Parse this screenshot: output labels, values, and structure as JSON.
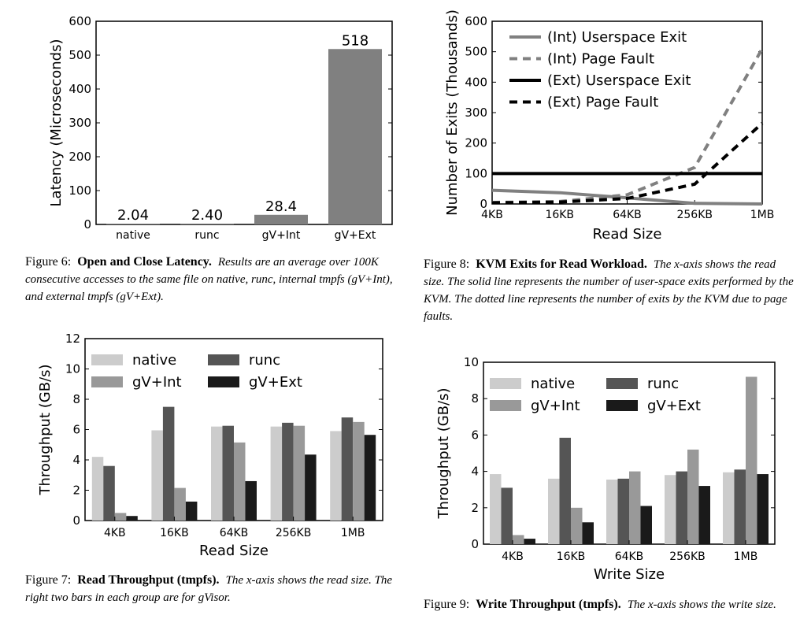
{
  "figures": {
    "fig6": {
      "caption": {
        "label": "Figure 6:",
        "title": "Open and Close Latency.",
        "body": "Results are an average over 100K consecutive accesses to the same file on native, runc, internal tmpfs (gV+Int), and external tmpfs (gV+Ext)."
      }
    },
    "fig7": {
      "caption": {
        "label": "Figure 7:",
        "title": "Read Throughput (tmpfs).",
        "body": "The x-axis shows the read size. The right two bars in each group are for gVisor."
      }
    },
    "fig8": {
      "caption": {
        "label": "Figure 8:",
        "title": "KVM Exits for Read Workload.",
        "body": "The x-axis shows the read size. The solid line represents the number of user-space exits performed by the KVM. The dotted line represents the number of exits by the KVM due to page faults."
      }
    },
    "fig9": {
      "caption": {
        "label": "Figure 9:",
        "title": "Write Throughput (tmpfs).",
        "body": "The x-axis shows the write size."
      }
    }
  },
  "chart_data": [
    {
      "id": "fig6",
      "type": "bar",
      "categories": [
        "native",
        "runc",
        "gV+Int",
        "gV+Ext"
      ],
      "values": [
        2.04,
        2.4,
        28.4,
        518
      ],
      "data_labels": [
        "2.04",
        "2.40",
        "28.4",
        "518"
      ],
      "ylabel": "Latency (Microseconds)",
      "xlabel": "",
      "ylim": [
        0,
        600
      ],
      "yticks": [
        0,
        100,
        200,
        300,
        400,
        500,
        600
      ],
      "bar_color": "#808080",
      "grid": false
    },
    {
      "id": "fig7",
      "type": "bar",
      "categories": [
        "4KB",
        "16KB",
        "64KB",
        "256KB",
        "1MB"
      ],
      "series": [
        {
          "name": "native",
          "color": "#cccccc",
          "values": [
            4.2,
            5.95,
            6.2,
            6.2,
            5.9
          ]
        },
        {
          "name": "runc",
          "color": "#555555",
          "values": [
            3.6,
            7.5,
            6.25,
            6.45,
            6.8
          ]
        },
        {
          "name": "gV+Int",
          "color": "#999999",
          "values": [
            0.5,
            2.15,
            5.15,
            6.25,
            6.5
          ]
        },
        {
          "name": "gV+Ext",
          "color": "#1a1a1a",
          "values": [
            0.3,
            1.25,
            2.6,
            4.35,
            5.65
          ]
        }
      ],
      "xlabel": "Read Size",
      "ylabel": "Throughput (GB/s)",
      "ylim": [
        0,
        12
      ],
      "yticks": [
        0,
        2,
        4,
        6,
        8,
        10,
        12
      ],
      "legend": "top-left",
      "grid": false
    },
    {
      "id": "fig8",
      "type": "line",
      "x": [
        "4KB",
        "16KB",
        "64KB",
        "256KB",
        "1MB"
      ],
      "series": [
        {
          "name": "(Int) Userspace Exit",
          "color": "#808080",
          "style": "solid",
          "values": [
            45,
            37,
            20,
            2,
            0
          ]
        },
        {
          "name": "(Int) Page Fault",
          "color": "#808080",
          "style": "dashed",
          "values": [
            5,
            8,
            30,
            120,
            510
          ]
        },
        {
          "name": "(Ext) Userspace Exit",
          "color": "#000000",
          "style": "solid",
          "values": [
            100,
            100,
            100,
            100,
            100
          ]
        },
        {
          "name": "(Ext) Page Fault",
          "color": "#000000",
          "style": "dashed",
          "values": [
            4,
            6,
            18,
            65,
            265
          ]
        }
      ],
      "xlabel": "Read Size",
      "ylabel": "Number of Exits (Thousands)",
      "ylim": [
        0,
        600
      ],
      "yticks": [
        0,
        100,
        200,
        300,
        400,
        500,
        600
      ],
      "legend": "top-left",
      "grid": false
    },
    {
      "id": "fig9",
      "type": "bar",
      "categories": [
        "4KB",
        "16KB",
        "64KB",
        "256KB",
        "1MB"
      ],
      "series": [
        {
          "name": "native",
          "color": "#cccccc",
          "values": [
            3.85,
            3.6,
            3.55,
            3.8,
            3.95
          ]
        },
        {
          "name": "runc",
          "color": "#555555",
          "values": [
            3.1,
            5.85,
            3.6,
            4.0,
            4.1
          ]
        },
        {
          "name": "gV+Int",
          "color": "#999999",
          "values": [
            0.5,
            2.0,
            4.0,
            5.2,
            9.2
          ]
        },
        {
          "name": "gV+Ext",
          "color": "#1a1a1a",
          "values": [
            0.3,
            1.2,
            2.1,
            3.2,
            3.85
          ]
        }
      ],
      "xlabel": "Write Size",
      "ylabel": "Throughput (GB/s)",
      "ylim": [
        0,
        10
      ],
      "yticks": [
        0,
        2,
        4,
        6,
        8,
        10
      ],
      "legend": "top-left",
      "grid": false
    }
  ]
}
